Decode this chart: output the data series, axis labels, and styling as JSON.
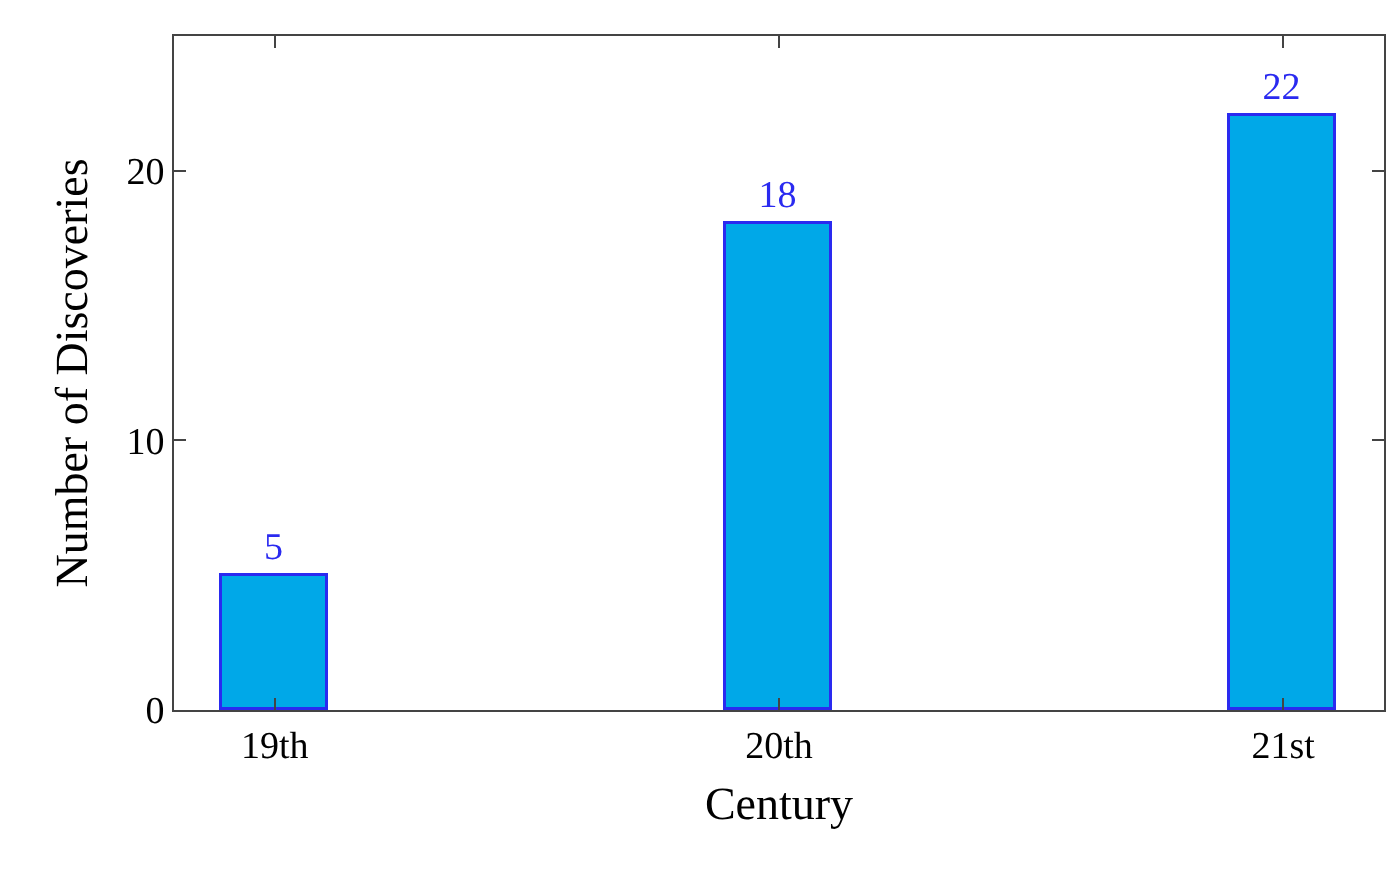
{
  "chart_data": {
    "type": "bar",
    "xlabel": "Century",
    "ylabel": "Number of Discoveries",
    "categories": [
      "19th",
      "20th",
      "21st"
    ],
    "values": [
      5,
      18,
      22
    ],
    "color": "#00a8e8",
    "ylim": [
      0,
      25
    ],
    "yticks": [
      0,
      10,
      20
    ],
    "grid": false,
    "legend": false,
    "data_labels": true
  }
}
